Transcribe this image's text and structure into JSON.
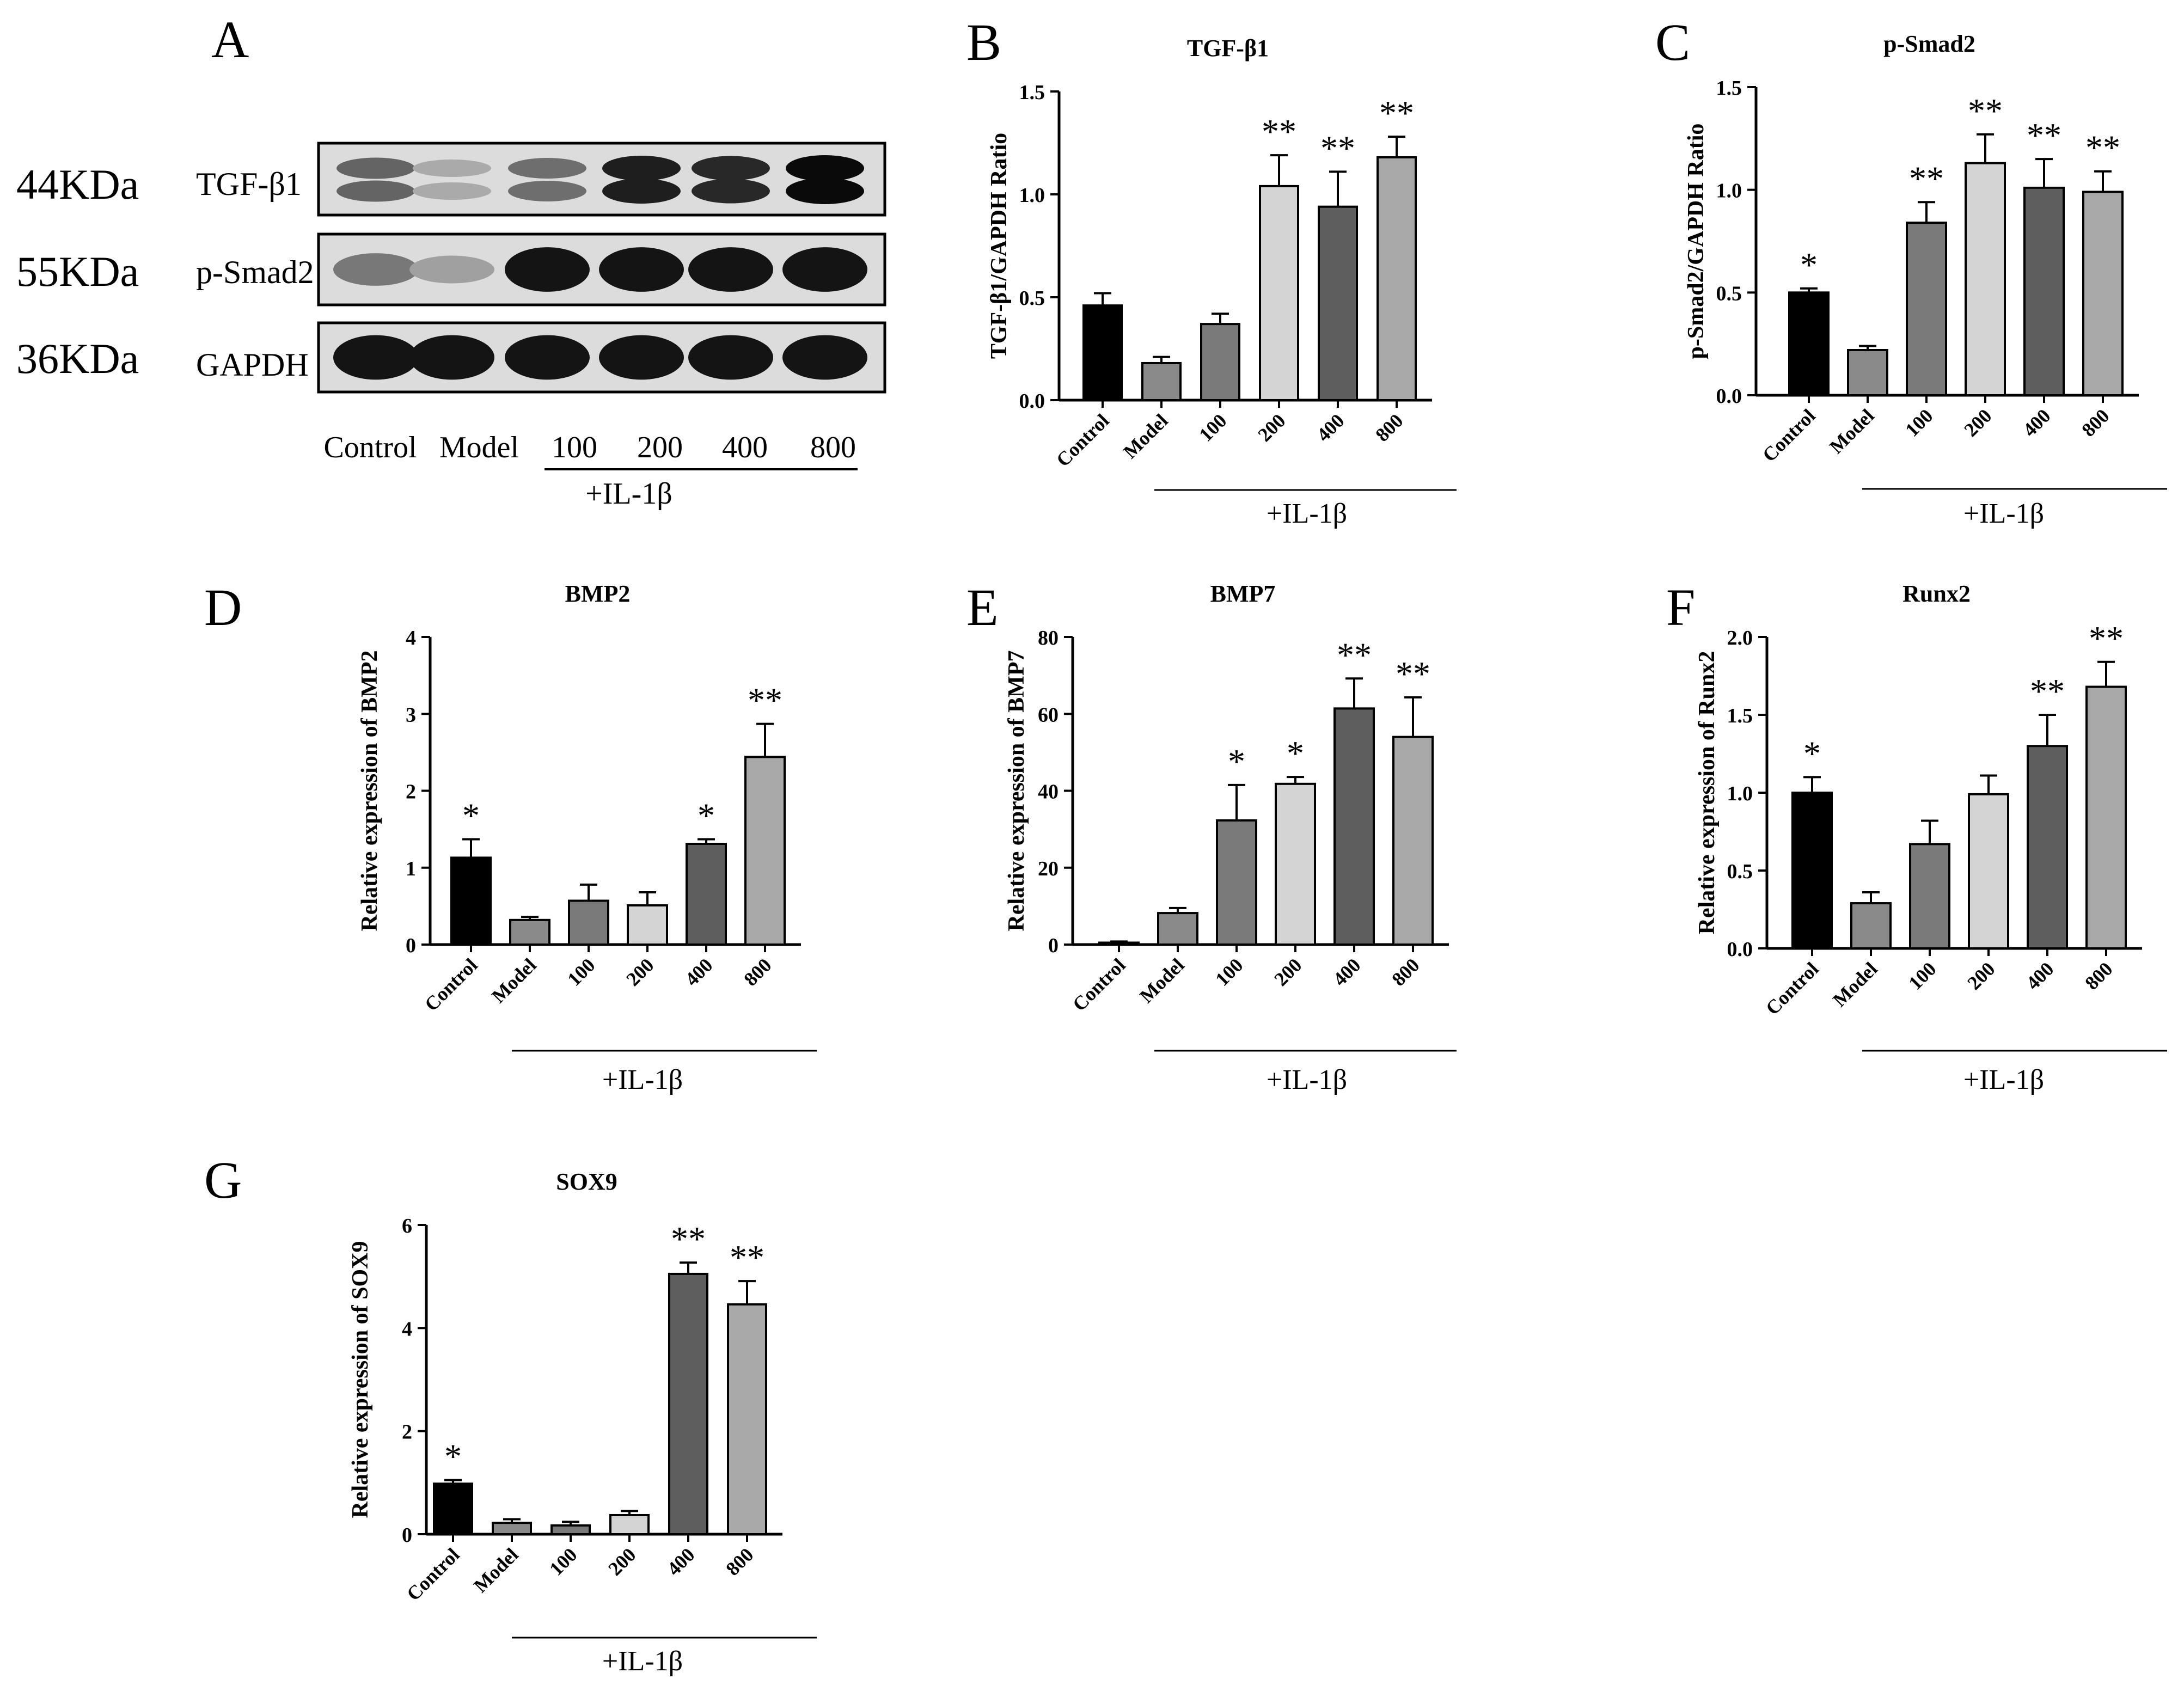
{
  "blot": {
    "panel_letter": "A",
    "rows": [
      {
        "size": "44KDa",
        "protein": "TGF-β1",
        "intensities": [
          0.55,
          0.2,
          0.5,
          0.9,
          0.85,
          1.0
        ]
      },
      {
        "size": "55KDa",
        "protein": "p-Smad2",
        "intensities": [
          0.45,
          0.25,
          0.95,
          0.95,
          0.95,
          0.95
        ]
      },
      {
        "size": "36KDa",
        "protein": "GAPDH",
        "intensities": [
          0.95,
          0.95,
          0.95,
          0.95,
          0.95,
          0.95
        ]
      }
    ],
    "lanes": [
      "Control",
      "Model",
      "100",
      "200",
      "400",
      "800"
    ],
    "group_label": "+IL-1β"
  },
  "colors": [
    "#000000",
    "#8a8a8a",
    "#7a7a7a",
    "#d4d4d4",
    "#5e5e5e",
    "#a8a8a8"
  ],
  "chart_data": [
    {
      "panel": "B",
      "type": "bar",
      "title": "TGF-β1",
      "ylabel": "TGF-β1/GAPDH Ratio",
      "categories": [
        "Control",
        "Model",
        "100",
        "200",
        "400",
        "800"
      ],
      "values": [
        0.46,
        0.18,
        0.37,
        1.04,
        0.94,
        1.18
      ],
      "errors": [
        0.06,
        0.03,
        0.05,
        0.15,
        0.17,
        0.1
      ],
      "ylim": [
        0,
        1.5
      ],
      "yticks": [
        "0.0",
        "0.5",
        "1.0",
        "1.5"
      ],
      "sig": [
        "",
        "",
        "",
        "**",
        "**",
        "**"
      ],
      "group_label": "+IL-1β"
    },
    {
      "panel": "C",
      "type": "bar",
      "title": "p-Smad2",
      "ylabel": "p-Smad2/GAPDH Ratio",
      "categories": [
        "Control",
        "Model",
        "100",
        "200",
        "400",
        "800"
      ],
      "values": [
        0.5,
        0.22,
        0.84,
        1.13,
        1.01,
        0.99
      ],
      "errors": [
        0.02,
        0.02,
        0.1,
        0.14,
        0.14,
        0.1
      ],
      "ylim": [
        0,
        1.5
      ],
      "yticks": [
        "0.0",
        "0.5",
        "1.0",
        "1.5"
      ],
      "sig": [
        "*",
        "",
        "**",
        "**",
        "**",
        "**"
      ],
      "group_label": "+IL-1β"
    },
    {
      "panel": "D",
      "type": "bar",
      "title": "BMP2",
      "ylabel": "Relative expression of BMP2",
      "categories": [
        "Control",
        "Model",
        "100",
        "200",
        "400",
        "800"
      ],
      "values": [
        1.13,
        0.32,
        0.57,
        0.51,
        1.31,
        2.44
      ],
      "errors": [
        0.24,
        0.04,
        0.21,
        0.17,
        0.06,
        0.43
      ],
      "ylim": [
        0,
        4
      ],
      "yticks": [
        "0",
        "1",
        "2",
        "3",
        "4"
      ],
      "sig": [
        "*",
        "",
        "",
        "",
        "*",
        "**"
      ],
      "group_label": "+IL-1β"
    },
    {
      "panel": "E",
      "type": "bar",
      "title": "BMP7",
      "ylabel": "Relative expression of BMP7",
      "categories": [
        "Control",
        "Model",
        "100",
        "200",
        "400",
        "800"
      ],
      "values": [
        0.5,
        8.2,
        32.3,
        41.8,
        61.4,
        54.0
      ],
      "errors": [
        0.3,
        1.3,
        9.2,
        1.8,
        7.8,
        10.3
      ],
      "ylim": [
        0,
        80
      ],
      "yticks": [
        "0",
        "20",
        "40",
        "60",
        "80"
      ],
      "sig": [
        "",
        "",
        "*",
        "*",
        "**",
        "**"
      ],
      "group_label": "+IL-1β"
    },
    {
      "panel": "F",
      "type": "bar",
      "title": "Runx2",
      "ylabel": "Relative expression of Runx2",
      "categories": [
        "Control",
        "Model",
        "100",
        "200",
        "400",
        "800"
      ],
      "values": [
        1.0,
        0.29,
        0.67,
        0.99,
        1.3,
        1.68
      ],
      "errors": [
        0.1,
        0.07,
        0.15,
        0.12,
        0.2,
        0.16
      ],
      "ylim": [
        0,
        2.0
      ],
      "yticks": [
        "0.0",
        "0.5",
        "1.0",
        "1.5",
        "2.0"
      ],
      "sig": [
        "*",
        "",
        "",
        "",
        "**",
        "**"
      ],
      "group_label": "+IL-1β"
    },
    {
      "panel": "G",
      "type": "bar",
      "title": "SOX9",
      "ylabel": "Relative expression of SOX9",
      "categories": [
        "Control",
        "Model",
        "100",
        "200",
        "400",
        "800"
      ],
      "values": [
        0.98,
        0.22,
        0.17,
        0.37,
        5.05,
        4.46
      ],
      "errors": [
        0.07,
        0.07,
        0.07,
        0.08,
        0.22,
        0.45
      ],
      "ylim": [
        0,
        6
      ],
      "yticks": [
        "0",
        "2",
        "4",
        "6"
      ],
      "sig": [
        "*",
        "",
        "",
        "",
        "**",
        "**"
      ],
      "group_label": "+IL-1β"
    }
  ]
}
